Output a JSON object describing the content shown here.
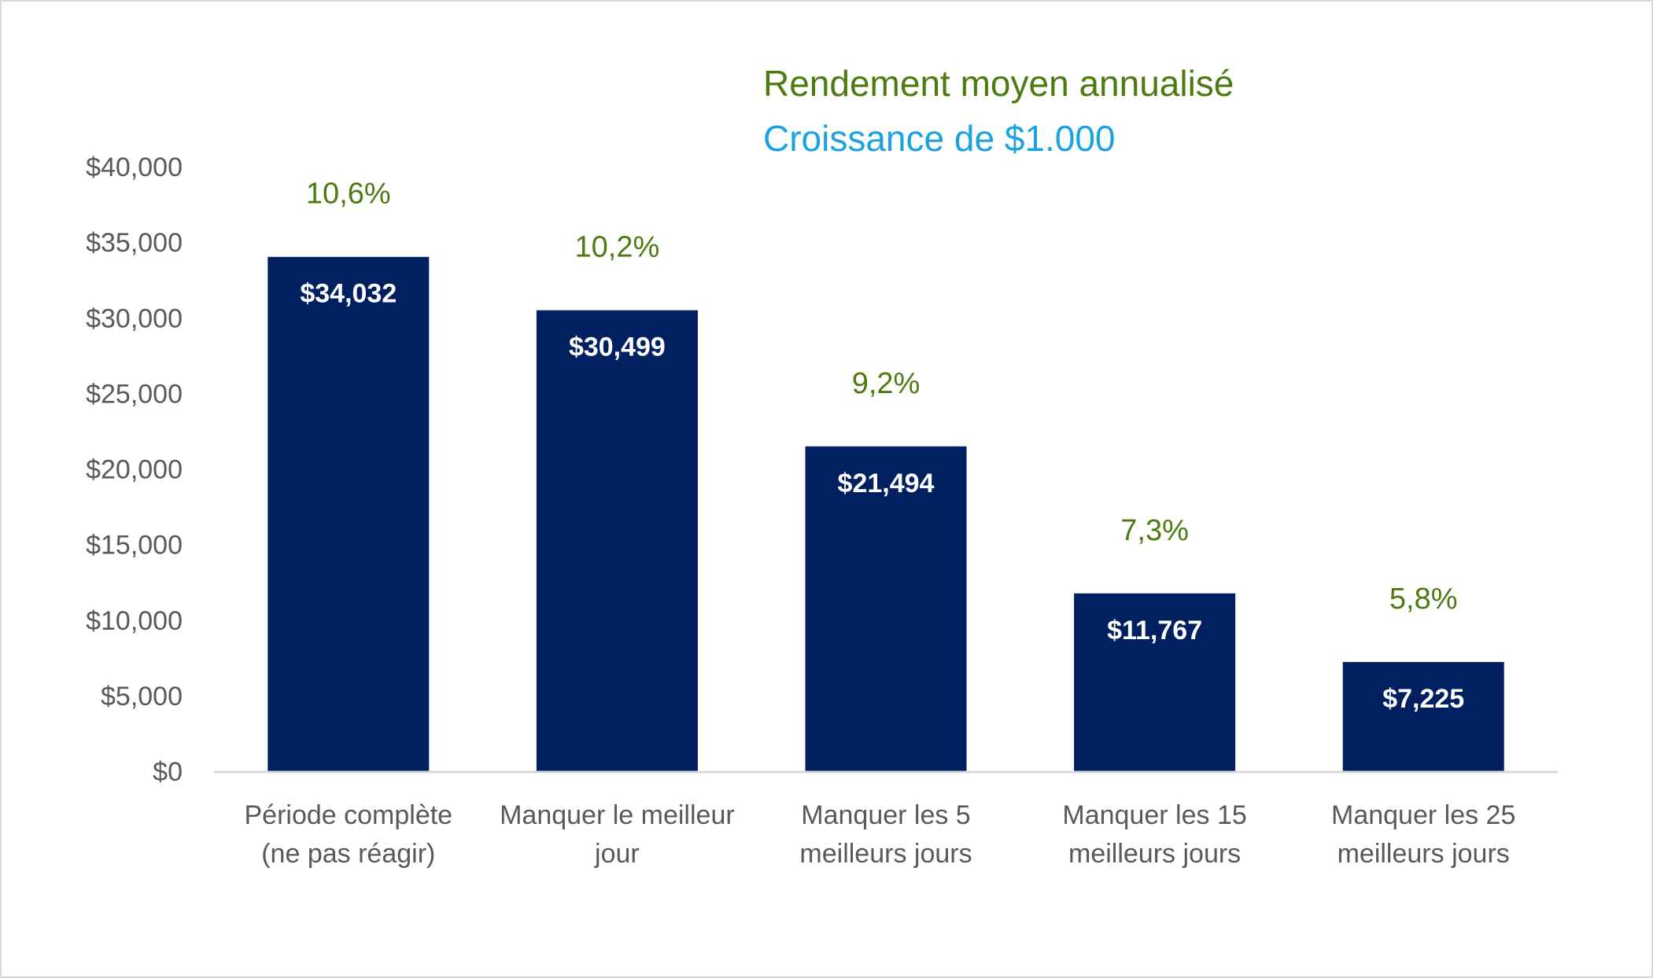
{
  "chart_data": {
    "type": "bar",
    "legend": [
      {
        "label": "Rendement moyen annualisé",
        "color": "#4e7b0f"
      },
      {
        "label": "Croissance de $1.000",
        "color": "#1aa3e0"
      }
    ],
    "legend_placement": "top-right",
    "categories": [
      [
        "Période complète",
        "(ne pas réagir)"
      ],
      [
        "Manquer le meilleur",
        "jour"
      ],
      [
        "Manquer les 5",
        "meilleurs jours"
      ],
      [
        "Manquer les 15",
        "meilleurs jours"
      ],
      [
        "Manquer les 25",
        "meilleurs jours"
      ]
    ],
    "series": [
      {
        "values": [
          34032,
          30499,
          21494,
          11767,
          7225
        ],
        "value_labels": [
          "$34,032",
          "$30,499",
          "$21,494",
          "$11,767",
          "$7,225"
        ],
        "color": "#002060"
      }
    ],
    "annualized_returns": [
      "10,6%",
      "10,2%",
      "9,2%",
      "7,3%",
      "5,8%"
    ],
    "annualized_return_color": "#4e7b0f",
    "ylim": [
      0,
      40000
    ],
    "y_ticks": [
      0,
      5000,
      10000,
      15000,
      20000,
      25000,
      30000,
      35000,
      40000
    ],
    "y_tick_labels": [
      "$0",
      "$5,000",
      "$10,000",
      "$15,000",
      "$20,000",
      "$25,000",
      "$30,000",
      "$35,000",
      "$40,000"
    ],
    "grid": false,
    "title": "",
    "xlabel": "",
    "ylabel": ""
  }
}
